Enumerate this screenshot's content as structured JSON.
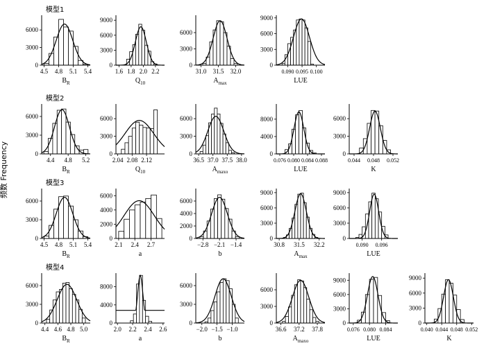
{
  "y_axis_title": "频数  Frequency",
  "chart_data": [
    {
      "type": "bar",
      "row": 0,
      "col": 0,
      "model_label": "模型1",
      "xlabel": "B_R",
      "xlabel_main": "B",
      "xlabel_sub": "R",
      "xlim": [
        4.45,
        5.45
      ],
      "ylim": [
        0,
        8500
      ],
      "xticks": [
        4.5,
        4.8,
        5.1,
        5.4
      ],
      "xticklabels": [
        "4.5",
        "4.8",
        "5.1",
        "5.4"
      ],
      "yticks": [
        0,
        3000,
        6000
      ],
      "yticklabels": [
        "0",
        "3000",
        "6000"
      ],
      "bins": [
        4.55,
        4.65,
        4.75,
        4.85,
        4.95,
        5.05,
        5.15,
        5.25,
        5.35
      ],
      "values": [
        300,
        2000,
        4800,
        7800,
        6500,
        5800,
        3200,
        800,
        150
      ],
      "curve": {
        "mean": 4.92,
        "sd": 0.17,
        "peak": 7000
      }
    },
    {
      "type": "bar",
      "row": 0,
      "col": 1,
      "xlabel": "Q_10",
      "xlabel_main": "Q",
      "xlabel_sub": "10",
      "xlim": [
        1.55,
        2.35
      ],
      "ylim": [
        0,
        10000
      ],
      "xticks": [
        1.6,
        1.8,
        2.0,
        2.2
      ],
      "xticklabels": [
        "1.6",
        "1.8",
        "2.0",
        "2.2"
      ],
      "yticks": [
        0,
        3000,
        6000,
        9000
      ],
      "yticklabels": [
        "0",
        "3000",
        "6000",
        "9000"
      ],
      "bins": [
        1.75,
        1.8,
        1.85,
        1.9,
        1.95,
        2.0,
        2.05,
        2.1,
        2.15,
        2.2
      ],
      "values": [
        1200,
        2700,
        4100,
        6200,
        8200,
        7000,
        4000,
        2800,
        700,
        250
      ],
      "curve": {
        "mean": 1.96,
        "sd": 0.09,
        "peak": 7700
      }
    },
    {
      "type": "bar",
      "row": 0,
      "col": 2,
      "xlabel": "A_max",
      "xlabel_main": "A",
      "xlabel_sub": "max",
      "xlim": [
        30.85,
        32.25
      ],
      "ylim": [
        0,
        9200
      ],
      "xticks": [
        31.0,
        31.5,
        32.0
      ],
      "xticklabels": [
        "31.0",
        "31.5",
        "32.0"
      ],
      "yticks": [
        0,
        3000,
        6000
      ],
      "yticklabels": [
        "0",
        "3000",
        "6000"
      ],
      "bins": [
        31.1,
        31.2,
        31.3,
        31.4,
        31.5,
        31.6,
        31.7,
        31.8,
        31.9,
        32.0
      ],
      "values": [
        300,
        1500,
        4300,
        6500,
        8200,
        8000,
        6000,
        3500,
        1200,
        300
      ],
      "curve": {
        "mean": 31.55,
        "sd": 0.2,
        "peak": 8200
      }
    },
    {
      "type": "bar",
      "row": 0,
      "col": 3,
      "xlabel": "LUE",
      "xlabel_main": "LUE",
      "xlabel_sub": "",
      "xlim": [
        0.086,
        0.103
      ],
      "ylim": [
        0,
        9500
      ],
      "xticks": [
        0.09,
        0.095,
        0.1
      ],
      "xticklabels": [
        "0.090",
        "0.095",
        "0.100"
      ],
      "yticks": [
        0,
        3000,
        6000,
        9000
      ],
      "yticklabels": [
        "0",
        "3000",
        "6000",
        "9000"
      ],
      "bins": [
        0.0885,
        0.0895,
        0.0905,
        0.0915,
        0.0925,
        0.0935,
        0.0945,
        0.0955,
        0.0965,
        0.0975,
        0.0985
      ],
      "values": [
        300,
        2000,
        4100,
        5300,
        6700,
        8600,
        8800,
        8600,
        7100,
        4500,
        200
      ],
      "curve": {
        "mean": 0.0948,
        "sd": 0.0028,
        "peak": 8800
      }
    },
    {
      "type": "bar",
      "row": 1,
      "col": 0,
      "model_label": "模型2",
      "xlabel": "B_R",
      "xlabel_main": "B",
      "xlabel_sub": "R",
      "xlim": [
        4.2,
        5.3
      ],
      "ylim": [
        0,
        8000
      ],
      "xticks": [
        4.4,
        4.8,
        5.2
      ],
      "xticklabels": [
        "4.4",
        "4.8",
        "5.2"
      ],
      "yticks": [
        0,
        3000,
        6000
      ],
      "yticklabels": [
        "0",
        "3000",
        "6000"
      ],
      "bins": [
        4.3,
        4.4,
        4.5,
        4.6,
        4.7,
        4.8,
        4.9,
        5.0,
        5.1,
        5.2
      ],
      "values": [
        400,
        2500,
        4900,
        7000,
        7200,
        5100,
        3100,
        1300,
        600,
        700
      ],
      "curve": {
        "mean": 4.66,
        "sd": 0.17,
        "peak": 7100
      }
    },
    {
      "type": "bar",
      "row": 1,
      "col": 1,
      "xlabel": "Q_10",
      "xlabel_main": "Q",
      "xlabel_sub": "10",
      "xlim": [
        2.035,
        2.17
      ],
      "ylim": [
        0,
        8500
      ],
      "xticks": [
        2.04,
        2.08,
        2.12
      ],
      "xticklabels": [
        "2.04",
        "2.08",
        "2.12"
      ],
      "yticks": [
        0,
        3000,
        6000
      ],
      "yticklabels": [
        "0",
        "3000",
        "6000"
      ],
      "bins": [
        2.055,
        2.065,
        2.075,
        2.085,
        2.095,
        2.105,
        2.115,
        2.125,
        2.135,
        2.145
      ],
      "values": [
        800,
        1900,
        3000,
        4400,
        5400,
        4900,
        4500,
        4400,
        4300,
        7500
      ],
      "curve": {
        "mean": 2.1,
        "sd": 0.04,
        "peak": 5700
      }
    },
    {
      "type": "bar",
      "row": 1,
      "col": 2,
      "xlabel": "A_maxo",
      "xlabel_main": "A",
      "xlabel_sub": "maxo",
      "xlim": [
        36.4,
        38.1
      ],
      "ylim": [
        0,
        8500
      ],
      "xticks": [
        36.5,
        37.0,
        37.5,
        38.0
      ],
      "xticklabels": [
        "36.5",
        "37.0",
        "37.5",
        "38.0"
      ],
      "yticks": [
        0,
        3000,
        6000
      ],
      "yticklabels": [
        "0",
        "3000",
        "6000"
      ],
      "bins": [
        36.6,
        36.7,
        36.8,
        36.9,
        37.0,
        37.1,
        37.2,
        37.3,
        37.4,
        37.5,
        37.6,
        37.7
      ],
      "values": [
        400,
        1500,
        3100,
        5300,
        6800,
        7800,
        6800,
        5200,
        3400,
        1900,
        600,
        200
      ],
      "curve": {
        "mean": 37.1,
        "sd": 0.28,
        "peak": 6400
      }
    },
    {
      "type": "bar",
      "row": 1,
      "col": 3,
      "xlabel": "LUE",
      "xlabel_main": "LUE",
      "xlabel_sub": "",
      "xlim": [
        0.075,
        0.089
      ],
      "ylim": [
        0,
        11500
      ],
      "xticks": [
        0.076,
        0.08,
        0.084,
        0.088
      ],
      "xticklabels": [
        "0.076",
        "0.080",
        "0.084",
        "0.088"
      ],
      "yticks": [
        0,
        4000,
        8000
      ],
      "yticklabels": [
        "0",
        "4000",
        "8000"
      ],
      "bins": [
        0.078,
        0.079,
        0.08,
        0.081,
        0.082,
        0.083,
        0.084,
        0.085,
        0.086
      ],
      "values": [
        1000,
        2300,
        5700,
        9000,
        10000,
        6000,
        2500,
        800,
        200
      ],
      "curve": {
        "mean": 0.0815,
        "sd": 0.0014,
        "peak": 9700
      }
    },
    {
      "type": "bar",
      "row": 1,
      "col": 4,
      "xlabel": "K",
      "xlabel_main": "K",
      "xlabel_sub": "",
      "xlim": [
        0.043,
        0.053
      ],
      "ylim": [
        0,
        8500
      ],
      "xticks": [
        0.044,
        0.048,
        0.052
      ],
      "xticklabels": [
        "0.044",
        "0.048",
        "0.052"
      ],
      "yticks": [
        0,
        3000,
        6000
      ],
      "yticklabels": [
        "0",
        "3000",
        "6000"
      ],
      "bins": [
        0.0455,
        0.0463,
        0.0471,
        0.0479,
        0.0487,
        0.0495,
        0.0503,
        0.0511
      ],
      "values": [
        1000,
        2600,
        5200,
        7400,
        7300,
        4800,
        2300,
        700
      ],
      "curve": {
        "mean": 0.0483,
        "sd": 0.0011,
        "peak": 7300
      }
    },
    {
      "type": "bar",
      "row": 2,
      "col": 0,
      "model_label": "模型3",
      "xlabel": "B_R",
      "xlabel_main": "B",
      "xlabel_sub": "R",
      "xlim": [
        4.45,
        5.45
      ],
      "ylim": [
        0,
        8000
      ],
      "xticks": [
        4.5,
        4.8,
        5.1,
        5.4
      ],
      "xticklabels": [
        "4.5",
        "4.8",
        "5.1",
        "5.4"
      ],
      "yticks": [
        0,
        3000,
        6000
      ],
      "yticklabels": [
        "0",
        "3000",
        "6000"
      ],
      "bins": [
        4.55,
        4.65,
        4.75,
        4.85,
        4.95,
        5.05,
        5.15,
        5.25,
        5.35
      ],
      "values": [
        400,
        2100,
        4700,
        6700,
        6800,
        5200,
        3000,
        1200,
        300
      ],
      "curve": {
        "mean": 4.92,
        "sd": 0.17,
        "peak": 6600
      }
    },
    {
      "type": "bar",
      "row": 2,
      "col": 1,
      "xlabel": "a",
      "xlabel_main": "a",
      "xlabel_sub": "",
      "xlim": [
        2.05,
        2.95
      ],
      "ylim": [
        0,
        7000
      ],
      "xticks": [
        2.1,
        2.4,
        2.7
      ],
      "xticklabels": [
        "2.1",
        "2.4",
        "2.7"
      ],
      "yticks": [
        0,
        2000,
        4000,
        6000
      ],
      "yticklabels": [
        "0",
        "2000",
        "4000",
        "6000"
      ],
      "bins": [
        2.15,
        2.25,
        2.35,
        2.45,
        2.55,
        2.65,
        2.75,
        2.85
      ],
      "values": [
        1000,
        2700,
        4000,
        4700,
        5100,
        5600,
        6100,
        2800
      ],
      "curve": {
        "mean": 2.48,
        "sd": 0.28,
        "peak": 5300
      }
    },
    {
      "type": "bar",
      "row": 2,
      "col": 2,
      "xlabel": "b",
      "xlabel_main": "b",
      "xlabel_sub": "",
      "xlim": [
        -3.1,
        -1.05
      ],
      "ylim": [
        0,
        8000
      ],
      "xticks": [
        -2.8,
        -2.1,
        -1.4
      ],
      "xticklabels": [
        "−2.8",
        "−2.1",
        "−1.4"
      ],
      "yticks": [
        0,
        2000,
        4000,
        6000
      ],
      "yticklabels": [
        "0",
        "2000",
        "4000",
        "6000"
      ],
      "bins": [
        -2.85,
        -2.7,
        -2.55,
        -2.4,
        -2.25,
        -2.1,
        -1.95,
        -1.8,
        -1.65,
        -1.5,
        -1.35
      ],
      "values": [
        300,
        1200,
        2800,
        4700,
        6400,
        7000,
        6300,
        4800,
        3100,
        1200,
        300
      ],
      "curve": {
        "mean": -2.1,
        "sd": 0.33,
        "peak": 6600
      }
    },
    {
      "type": "bar",
      "row": 2,
      "col": 3,
      "xlabel": "A_max",
      "xlabel_main": "A",
      "xlabel_sub": "max",
      "xlim": [
        30.7,
        32.4
      ],
      "ylim": [
        0,
        9800
      ],
      "xticks": [
        30.8,
        31.5,
        32.2
      ],
      "xticklabels": [
        "30.8",
        "31.5",
        "32.2"
      ],
      "yticks": [
        0,
        3000,
        6000,
        9000
      ],
      "yticklabels": [
        "0",
        "3000",
        "6000",
        "9000"
      ],
      "bins": [
        31.0,
        31.1,
        31.2,
        31.3,
        31.4,
        31.5,
        31.6,
        31.7,
        31.8,
        31.9,
        32.0,
        32.1
      ],
      "values": [
        200,
        700,
        2000,
        4000,
        6700,
        8700,
        8900,
        7000,
        4200,
        2000,
        800,
        200
      ],
      "curve": {
        "mean": 31.55,
        "sd": 0.2,
        "peak": 8800
      }
    },
    {
      "type": "bar",
      "row": 2,
      "col": 4,
      "xlabel": "LUE",
      "xlabel_main": "LUE",
      "xlabel_sub": "",
      "xlim": [
        0.086,
        0.101
      ],
      "ylim": [
        0,
        9800
      ],
      "xticks": [
        0.09,
        0.096
      ],
      "xticklabels": [
        "0.090",
        "0.096"
      ],
      "yticks": [
        0,
        3000,
        6000,
        9000
      ],
      "yticklabels": [
        "0",
        "3000",
        "6000",
        "9000"
      ],
      "bins": [
        0.0885,
        0.0895,
        0.0905,
        0.0915,
        0.0925,
        0.0935,
        0.0945,
        0.0955,
        0.0965,
        0.0975
      ],
      "values": [
        200,
        800,
        2300,
        4800,
        7200,
        8900,
        7800,
        5200,
        2400,
        700
      ],
      "curve": {
        "mean": 0.0937,
        "sd": 0.0014,
        "peak": 8700
      }
    },
    {
      "type": "bar",
      "row": 3,
      "col": 0,
      "model_label": "模型4",
      "xlabel": "B_R",
      "xlabel_main": "B",
      "xlabel_sub": "R",
      "xlim": [
        4.35,
        5.1
      ],
      "ylim": [
        0,
        8000
      ],
      "xticks": [
        4.4,
        4.6,
        4.8,
        5.0
      ],
      "xticklabels": [
        "4.4",
        "4.6",
        "4.8",
        "5.0"
      ],
      "yticks": [
        0,
        3000,
        6000
      ],
      "yticklabels": [
        "0",
        "3000",
        "6000"
      ],
      "bins": [
        4.45,
        4.5,
        4.55,
        4.6,
        4.65,
        4.7,
        4.75,
        4.8,
        4.85,
        4.9,
        4.95,
        5.0
      ],
      "values": [
        600,
        2100,
        3700,
        5000,
        5400,
        6400,
        6500,
        5500,
        4600,
        3700,
        2200,
        800
      ],
      "curve": {
        "mean": 4.74,
        "sd": 0.15,
        "peak": 6200
      }
    },
    {
      "type": "bar",
      "row": 3,
      "col": 1,
      "xlabel": "a",
      "xlabel_main": "a",
      "xlabel_sub": "",
      "xlim": [
        1.98,
        2.62
      ],
      "ylim": [
        0,
        11000
      ],
      "xticks": [
        2.0,
        2.2,
        2.4,
        2.6
      ],
      "xticklabels": [
        "2.0",
        "2.2",
        "2.4",
        "2.6"
      ],
      "yticks": [
        0,
        4000,
        8000
      ],
      "yticklabels": [
        "0",
        "4000",
        "8000"
      ],
      "bins": [
        2.19,
        2.23,
        2.27,
        2.31,
        2.35,
        2.39,
        2.43
      ],
      "values": [
        500,
        2000,
        8600,
        10500,
        5000,
        1500,
        400
      ],
      "curve": {
        "mean": 2.3,
        "sd": 0.035,
        "peak": 10500,
        "baseline": 2800
      }
    },
    {
      "type": "bar",
      "row": 3,
      "col": 2,
      "xlabel": "b",
      "xlabel_main": "b",
      "xlabel_sub": "",
      "xlim": [
        -2.2,
        -0.6
      ],
      "ylim": [
        0,
        8000
      ],
      "xticks": [
        -2.0,
        -1.5,
        -1.0
      ],
      "xticklabels": [
        "−2.0",
        "−1.5",
        "−1.0"
      ],
      "yticks": [
        0,
        3000,
        6000
      ],
      "yticklabels": [
        "0",
        "3000",
        "6000"
      ],
      "bins": [
        -1.85,
        -1.75,
        -1.65,
        -1.55,
        -1.45,
        -1.35,
        -1.25,
        -1.15,
        -1.05,
        -0.95,
        -0.85
      ],
      "values": [
        200,
        800,
        2000,
        3400,
        5000,
        6500,
        7100,
        6800,
        5500,
        3000,
        800
      ],
      "curve": {
        "mean": -1.3,
        "sd": 0.27,
        "peak": 7100
      }
    },
    {
      "type": "bar",
      "row": 3,
      "col": 3,
      "xlabel": "A_maxo",
      "xlabel_main": "A",
      "xlabel_sub": "maxo",
      "xlim": [
        36.45,
        38.05
      ],
      "ylim": [
        0,
        9000
      ],
      "xticks": [
        36.6,
        37.2,
        37.8
      ],
      "xticklabels": [
        "36.6",
        "37.2",
        "37.8"
      ],
      "yticks": [
        0,
        3000,
        6000
      ],
      "yticklabels": [
        "0",
        "3000",
        "6000"
      ],
      "bins": [
        36.7,
        36.8,
        36.9,
        37.0,
        37.1,
        37.2,
        37.3,
        37.4,
        37.5,
        37.6,
        37.7,
        37.8
      ],
      "values": [
        300,
        1200,
        2900,
        5000,
        6900,
        7800,
        7600,
        6400,
        4300,
        2400,
        1000,
        300
      ],
      "curve": {
        "mean": 37.25,
        "sd": 0.27,
        "peak": 7700
      }
    },
    {
      "type": "bar",
      "row": 3,
      "col": 4,
      "xlabel": "LUE",
      "xlabel_main": "LUE",
      "xlabel_sub": "",
      "xlim": [
        0.075,
        0.087
      ],
      "ylim": [
        0,
        10500
      ],
      "xticks": [
        0.076,
        0.08,
        0.084
      ],
      "xticklabels": [
        "0.076",
        "0.080",
        "0.084"
      ],
      "yticks": [
        0,
        3000,
        6000,
        9000
      ],
      "yticklabels": [
        "0",
        "3000",
        "6000",
        "9000"
      ],
      "bins": [
        0.0775,
        0.0785,
        0.0795,
        0.0805,
        0.0815,
        0.0825,
        0.0835,
        0.0845
      ],
      "values": [
        600,
        2300,
        6000,
        9200,
        9600,
        5800,
        2200,
        500
      ],
      "curve": {
        "mean": 0.0808,
        "sd": 0.0013,
        "peak": 9800
      }
    },
    {
      "type": "bar",
      "row": 3,
      "col": 5,
      "xlabel": "K",
      "xlabel_main": "K",
      "xlabel_sub": "",
      "xlim": [
        0.0395,
        0.0525
      ],
      "ylim": [
        0,
        10000
      ],
      "xticks": [
        0.04,
        0.044,
        0.048,
        0.052
      ],
      "xticklabels": [
        "0.040",
        "0.044",
        "0.048",
        "0.052"
      ],
      "yticks": [
        0,
        3000,
        6000,
        9000
      ],
      "yticklabels": [
        "0",
        "3000",
        "6000",
        "9000"
      ],
      "bins": [
        0.0425,
        0.0435,
        0.0445,
        0.0455,
        0.0465,
        0.0475,
        0.0485,
        0.0495
      ],
      "values": [
        800,
        2900,
        5800,
        8700,
        8000,
        5600,
        2700,
        700
      ],
      "curve": {
        "mean": 0.0458,
        "sd": 0.0013,
        "peak": 8700
      }
    }
  ]
}
